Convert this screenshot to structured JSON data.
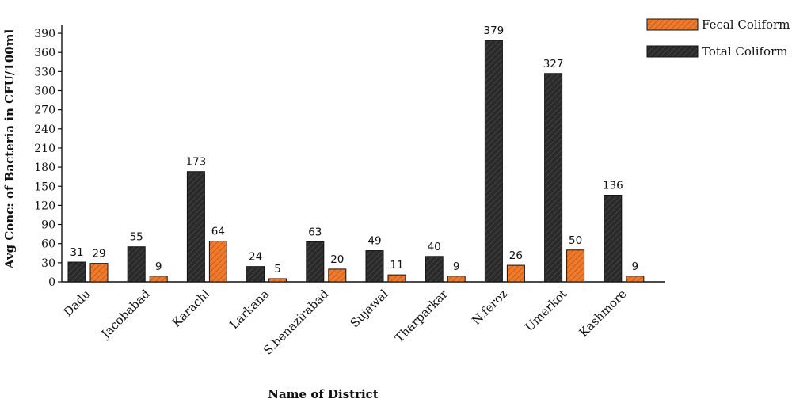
{
  "chart_data": {
    "type": "bar",
    "xlabel": "Name of District",
    "ylabel": "Avg Conc: of Bacteria in CFU/100ml",
    "ylim": [
      0,
      400
    ],
    "yticks": [
      0,
      30,
      60,
      90,
      120,
      150,
      180,
      210,
      240,
      270,
      300,
      330,
      360,
      390
    ],
    "grid": false,
    "legend_position": "top-right",
    "categories": [
      "Dadu",
      "Jacobabad",
      "Karachi",
      "Larkana",
      "S.benazirabad",
      "Sujawal",
      "Tharparkar",
      "N.feroz",
      "Umerkot",
      "Kashmore"
    ],
    "series": [
      {
        "name": "Total Coliform",
        "color": "#2a2a2a",
        "values": [
          31,
          55,
          173,
          24,
          63,
          49,
          40,
          379,
          327,
          136
        ]
      },
      {
        "name": "Fecal Coliform",
        "color": "#f07a2a",
        "values": [
          29,
          9,
          64,
          5,
          20,
          11,
          9,
          26,
          50,
          9
        ]
      }
    ],
    "legend_order": [
      "Fecal Coliform",
      "Total Coliform"
    ]
  }
}
